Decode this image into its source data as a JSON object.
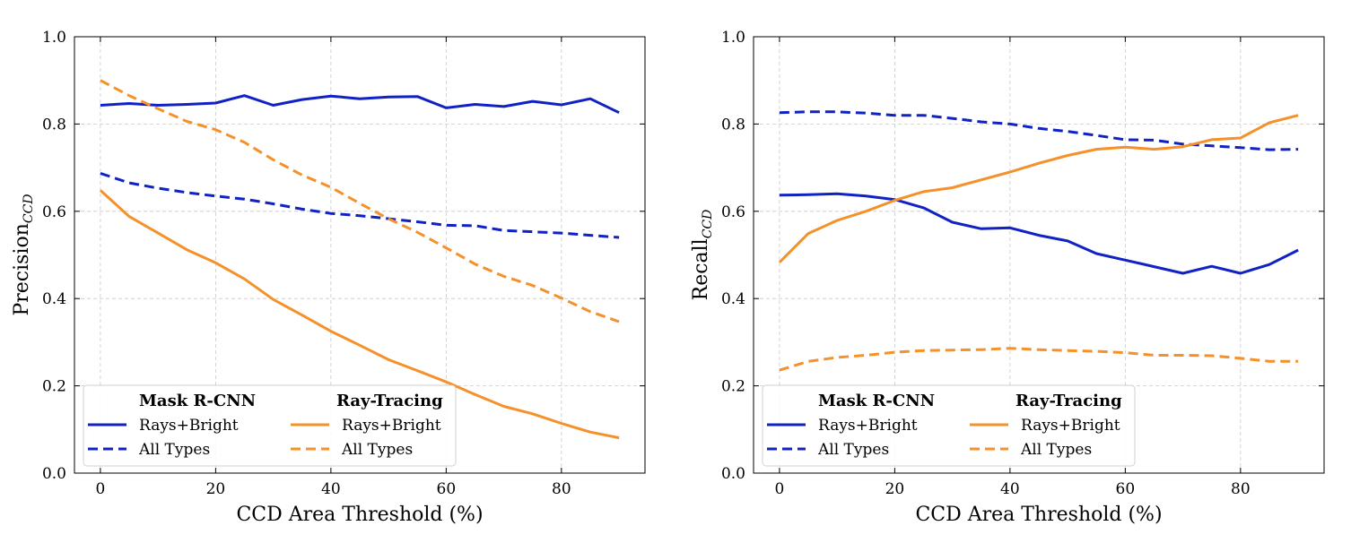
{
  "colors": {
    "mask": "#1022C4",
    "ray": "#F5912A"
  },
  "chart_data": [
    {
      "type": "line",
      "xlabel": "CCD Area Threshold (%)",
      "ylabel_main": "Precision",
      "ylabel_sub": "CCD",
      "xlim": [
        -4.5,
        94.5
      ],
      "ylim": [
        0.0,
        1.0
      ],
      "xticks": [
        0,
        20,
        40,
        60,
        80
      ],
      "yticks": [
        0.0,
        0.2,
        0.4,
        0.6,
        0.8,
        1.0
      ],
      "grid": true,
      "legend": {
        "placement": "bottom-left",
        "group_titles": [
          "Mask R-CNN",
          "Ray-Tracing"
        ],
        "labels": [
          "Rays+Bright",
          "All Types"
        ]
      },
      "x": [
        0,
        5,
        10,
        15,
        20,
        25,
        30,
        35,
        40,
        45,
        50,
        55,
        60,
        65,
        70,
        75,
        80,
        85,
        90
      ],
      "series": [
        {
          "name": "Rays+Bright",
          "group": "Mask R-CNN",
          "color_key": "mask",
          "dash": "solid",
          "values": [
            0.843,
            0.847,
            0.843,
            0.845,
            0.848,
            0.865,
            0.843,
            0.856,
            0.864,
            0.858,
            0.862,
            0.863,
            0.837,
            0.845,
            0.84,
            0.852,
            0.844,
            0.858,
            0.826
          ]
        },
        {
          "name": "All Types",
          "group": "Mask R-CNN",
          "color_key": "mask",
          "dash": "dashed",
          "values": [
            0.687,
            0.665,
            0.653,
            0.643,
            0.635,
            0.628,
            0.617,
            0.605,
            0.595,
            0.59,
            0.583,
            0.576,
            0.568,
            0.567,
            0.556,
            0.553,
            0.55,
            0.545,
            0.54
          ]
        },
        {
          "name": "Rays+Bright",
          "group": "Ray-Tracing",
          "color_key": "ray",
          "dash": "solid",
          "values": [
            0.648,
            0.588,
            0.55,
            0.512,
            0.482,
            0.445,
            0.398,
            0.362,
            0.325,
            0.293,
            0.26,
            0.235,
            0.209,
            0.18,
            0.153,
            0.136,
            0.114,
            0.094,
            0.081
          ]
        },
        {
          "name": "All Types",
          "group": "Ray-Tracing",
          "color_key": "ray",
          "dash": "dashed",
          "values": [
            0.9,
            0.865,
            0.835,
            0.806,
            0.787,
            0.758,
            0.718,
            0.683,
            0.655,
            0.618,
            0.583,
            0.552,
            0.516,
            0.479,
            0.451,
            0.43,
            0.401,
            0.37,
            0.347
          ]
        }
      ]
    },
    {
      "type": "line",
      "xlabel": "CCD Area Threshold (%)",
      "ylabel_main": "Recall",
      "ylabel_sub": "CCD",
      "xlim": [
        -4.5,
        94.5
      ],
      "ylim": [
        0.0,
        1.0
      ],
      "xticks": [
        0,
        20,
        40,
        60,
        80
      ],
      "yticks": [
        0.0,
        0.2,
        0.4,
        0.6,
        0.8,
        1.0
      ],
      "grid": true,
      "legend": {
        "placement": "bottom-left",
        "group_titles": [
          "Mask R-CNN",
          "Ray-Tracing"
        ],
        "labels": [
          "Rays+Bright",
          "All Types"
        ]
      },
      "x": [
        0,
        5,
        10,
        15,
        20,
        25,
        30,
        35,
        40,
        45,
        50,
        55,
        60,
        65,
        70,
        75,
        80,
        85,
        90
      ],
      "series": [
        {
          "name": "Rays+Bright",
          "group": "Mask R-CNN",
          "color_key": "mask",
          "dash": "solid",
          "values": [
            0.637,
            0.638,
            0.64,
            0.635,
            0.627,
            0.608,
            0.575,
            0.56,
            0.562,
            0.545,
            0.532,
            0.503,
            0.488,
            0.473,
            0.458,
            0.474,
            0.458,
            0.478,
            0.511
          ]
        },
        {
          "name": "All Types",
          "group": "Mask R-CNN",
          "color_key": "mask",
          "dash": "dashed",
          "values": [
            0.826,
            0.828,
            0.828,
            0.825,
            0.82,
            0.82,
            0.813,
            0.805,
            0.8,
            0.79,
            0.783,
            0.774,
            0.764,
            0.763,
            0.754,
            0.75,
            0.746,
            0.741,
            0.742
          ]
        },
        {
          "name": "Rays+Bright",
          "group": "Ray-Tracing",
          "color_key": "ray",
          "dash": "solid",
          "values": [
            0.483,
            0.549,
            0.579,
            0.6,
            0.625,
            0.645,
            0.654,
            0.672,
            0.69,
            0.71,
            0.728,
            0.742,
            0.747,
            0.742,
            0.748,
            0.764,
            0.768,
            0.803,
            0.82
          ]
        },
        {
          "name": "All Types",
          "group": "Ray-Tracing",
          "color_key": "ray",
          "dash": "dashed",
          "values": [
            0.236,
            0.256,
            0.265,
            0.27,
            0.277,
            0.281,
            0.282,
            0.283,
            0.286,
            0.283,
            0.281,
            0.279,
            0.276,
            0.27,
            0.27,
            0.269,
            0.263,
            0.256,
            0.256
          ]
        }
      ]
    }
  ]
}
